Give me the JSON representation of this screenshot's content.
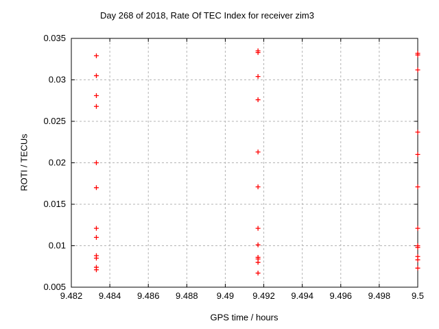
{
  "window": {
    "background": "#ffffff"
  },
  "colors": {
    "marker": "#ff0000",
    "grid": "#b3b3b3",
    "axis": "#000000",
    "background": "#ffffff"
  },
  "chart_data": {
    "type": "scatter",
    "title": "Day 268 of 2018, Rate Of TEC Index for receiver zim3",
    "xlabel": "GPS time / hours",
    "ylabel": "ROTI / TECUs",
    "xlim": [
      9.482,
      9.5
    ],
    "ylim": [
      0.005,
      0.035
    ],
    "xticks": [
      9.482,
      9.484,
      9.486,
      9.488,
      9.49,
      9.492,
      9.494,
      9.496,
      9.498,
      9.5
    ],
    "xtick_labels": [
      "9.482",
      "9.484",
      "9.486",
      "9.488",
      "9.49",
      "9.492",
      "9.494",
      "9.496",
      "9.498",
      "9.5"
    ],
    "yticks": [
      0.005,
      0.01,
      0.015,
      0.02,
      0.025,
      0.03,
      0.035
    ],
    "ytick_labels": [
      "0.005",
      "0.01",
      "0.015",
      "0.02",
      "0.025",
      "0.03",
      "0.035"
    ],
    "grid": true,
    "legend": "none",
    "marker": "plus",
    "series": [
      {
        "name": "ROTI",
        "points": [
          [
            9.4833,
            0.0329
          ],
          [
            9.4833,
            0.0305
          ],
          [
            9.4833,
            0.0281
          ],
          [
            9.4833,
            0.0268
          ],
          [
            9.4833,
            0.02
          ],
          [
            9.4833,
            0.017
          ],
          [
            9.4833,
            0.0121
          ],
          [
            9.4833,
            0.011
          ],
          [
            9.4833,
            0.0088
          ],
          [
            9.4833,
            0.0085
          ],
          [
            9.4833,
            0.0074
          ],
          [
            9.4833,
            0.0071
          ],
          [
            9.4917,
            0.0335
          ],
          [
            9.4917,
            0.0333
          ],
          [
            9.4917,
            0.0304
          ],
          [
            9.4917,
            0.0276
          ],
          [
            9.4917,
            0.0213
          ],
          [
            9.4917,
            0.0171
          ],
          [
            9.4917,
            0.0121
          ],
          [
            9.4917,
            0.0101
          ],
          [
            9.4917,
            0.0086
          ],
          [
            9.4917,
            0.0084
          ],
          [
            9.4917,
            0.008
          ],
          [
            9.4917,
            0.0067
          ],
          [
            9.5,
            0.0332
          ],
          [
            9.5,
            0.033
          ],
          [
            9.5,
            0.0312
          ],
          [
            9.5,
            0.0237
          ],
          [
            9.5,
            0.021
          ],
          [
            9.5,
            0.0171
          ],
          [
            9.5,
            0.0121
          ],
          [
            9.5,
            0.01
          ],
          [
            9.5,
            0.0098
          ],
          [
            9.5,
            0.0087
          ],
          [
            9.5,
            0.0083
          ],
          [
            9.5,
            0.0073
          ]
        ]
      }
    ]
  }
}
